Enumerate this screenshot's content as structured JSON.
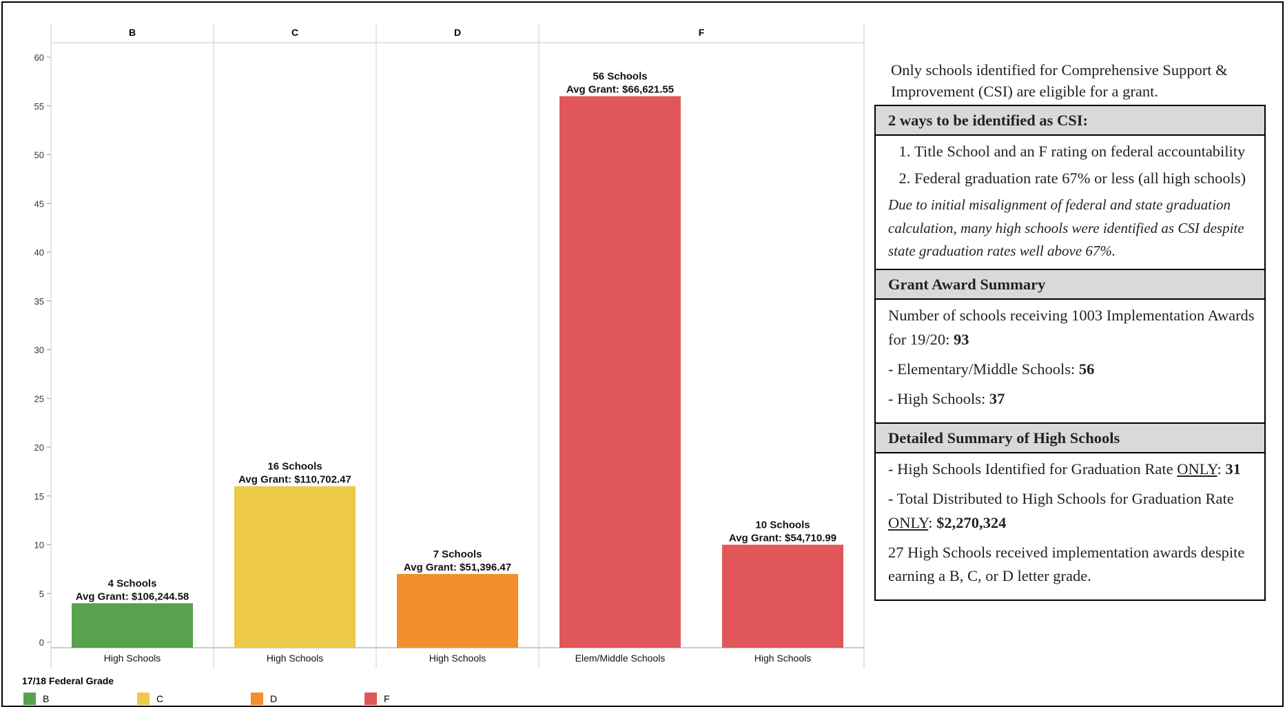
{
  "chart_data": {
    "type": "bar",
    "title": "",
    "xlabel": "",
    "ylabel": "",
    "ylim": [
      0,
      60
    ],
    "yticks": [
      0,
      5,
      10,
      15,
      20,
      25,
      30,
      35,
      40,
      45,
      50,
      55,
      60
    ],
    "grid": false,
    "column_headers": [
      "B",
      "C",
      "D",
      "F"
    ],
    "bars": [
      {
        "grade": "B",
        "category": "High Schools",
        "value": 4,
        "label_count": "4 Schools",
        "label_grant": "Avg Grant: $106,244.58",
        "color": "#59a14f"
      },
      {
        "grade": "C",
        "category": "High Schools",
        "value": 16,
        "label_count": "16 Schools",
        "label_grant": "Avg Grant: $110,702.47",
        "color": "#edc948"
      },
      {
        "grade": "D",
        "category": "High Schools",
        "value": 7,
        "label_count": "7 Schools",
        "label_grant": "Avg Grant: $51,396.47",
        "color": "#f28e2b"
      },
      {
        "grade": "F",
        "category": "Elem/Middle Schools",
        "value": 56,
        "label_count": "56 Schools",
        "label_grant": "Avg Grant: $66,621.55",
        "color": "#e15759"
      },
      {
        "grade": "F",
        "category": "High Schools",
        "value": 10,
        "label_count": "10 Schools",
        "label_grant": "Avg Grant: $54,710.99",
        "color": "#e15759"
      }
    ],
    "legend": {
      "title": "17/18 Federal Grade",
      "position": "bottom-left",
      "items": [
        {
          "label": "B",
          "color": "#59a14f"
        },
        {
          "label": "C",
          "color": "#edc948"
        },
        {
          "label": "D",
          "color": "#f28e2b"
        },
        {
          "label": "F",
          "color": "#e15759"
        }
      ]
    }
  },
  "panel": {
    "intro": "Only schools identified for Comprehensive Support & Improvement (CSI) are eligible for a grant.",
    "csi": {
      "header": "2 ways to be identified as CSI:",
      "ways": [
        "Title School and an F rating on federal accountability",
        "Federal graduation rate 67% or less (all high schools)"
      ],
      "note": "Due to initial misalignment of federal and state graduation calculation, many high schools were identified as CSI despite state graduation rates well above 67%."
    },
    "grant_summary": {
      "header": "Grant Award Summary",
      "line1_text": "Number of schools receiving 1003 Implementation Awards for 19/20: ",
      "line1_value": "93",
      "line2_text": "- Elementary/Middle Schools: ",
      "line2_value": "56",
      "line3_text": "- High Schools: ",
      "line3_value": "37"
    },
    "detailed": {
      "header": "Detailed Summary of High Schools",
      "item1_text": "- High Schools Identified for Graduation Rate ",
      "item1_underline": "ONLY",
      "item1_suffix": ": ",
      "item1_value": "31",
      "item2_text": "- Total Distributed to High Schools for Graduation Rate ",
      "item2_underline": "ONLY",
      "item2_suffix": ": ",
      "item2_value": "$2,270,324",
      "closing": "27 High Schools received implementation awards despite earning a B, C, or D letter grade."
    }
  }
}
